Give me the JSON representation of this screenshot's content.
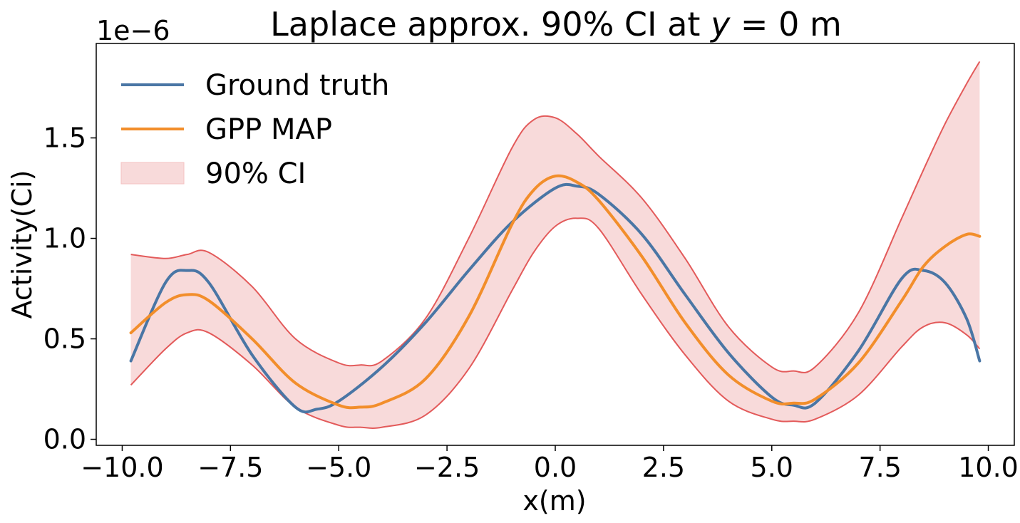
{
  "chart_data": {
    "type": "line",
    "title": "Laplace approx. 90% CI at y = 0 m",
    "title_parts": {
      "pre": "Laplace approx. 90% CI at ",
      "var": "y",
      "post": " = 0 m"
    },
    "xlabel": "x(m)",
    "ylabel": "Activity(Ci)",
    "y_offset_label": "1e−6",
    "xlim": [
      -10.6,
      10.6
    ],
    "ylim": [
      -0.03,
      1.97
    ],
    "x_ticks": [
      -10.0,
      -7.5,
      -5.0,
      -2.5,
      0.0,
      2.5,
      5.0,
      7.5,
      10.0
    ],
    "x_tick_labels": [
      "−10.0",
      "−7.5",
      "−5.0",
      "−2.5",
      "0.0",
      "2.5",
      "5.0",
      "7.5",
      "10.0"
    ],
    "y_ticks": [
      0.0,
      0.5,
      1.0,
      1.5
    ],
    "y_tick_labels": [
      "0.0",
      "0.5",
      "1.0",
      "1.5"
    ],
    "grid": false,
    "legend_position": "top-left",
    "series": [
      {
        "name": "Ground truth",
        "color": "#4a76a5",
        "x": [
          -9.8,
          -9.0,
          -8.5,
          -8.0,
          -7.0,
          -6.0,
          -5.5,
          -5.0,
          -4.0,
          -3.0,
          -2.0,
          -1.0,
          0.0,
          0.5,
          1.0,
          2.0,
          3.0,
          4.0,
          5.0,
          5.5,
          6.0,
          7.0,
          8.0,
          8.5,
          9.0,
          9.5,
          9.8
        ],
        "y": [
          0.39,
          0.78,
          0.84,
          0.78,
          0.42,
          0.16,
          0.15,
          0.19,
          0.36,
          0.58,
          0.84,
          1.08,
          1.25,
          1.26,
          1.22,
          1.02,
          0.72,
          0.43,
          0.21,
          0.17,
          0.18,
          0.44,
          0.8,
          0.84,
          0.78,
          0.6,
          0.39
        ]
      },
      {
        "name": "GPP MAP",
        "color": "#f28e2b",
        "x": [
          -9.8,
          -9.0,
          -8.5,
          -8.0,
          -7.0,
          -6.0,
          -5.0,
          -4.5,
          -4.0,
          -3.0,
          -2.0,
          -1.0,
          -0.5,
          0.0,
          0.5,
          1.0,
          2.0,
          3.0,
          4.0,
          5.0,
          5.5,
          6.0,
          7.0,
          8.0,
          8.5,
          9.0,
          9.5,
          9.8
        ],
        "y": [
          0.53,
          0.68,
          0.72,
          0.69,
          0.5,
          0.28,
          0.17,
          0.16,
          0.18,
          0.3,
          0.61,
          1.07,
          1.24,
          1.31,
          1.28,
          1.19,
          0.91,
          0.58,
          0.32,
          0.19,
          0.18,
          0.2,
          0.38,
          0.69,
          0.86,
          0.96,
          1.02,
          1.01
        ]
      }
    ],
    "bands": [
      {
        "name": "90% CI",
        "fill_color": "#f4c2c2",
        "edge_color": "#e35a5a",
        "x": [
          -9.8,
          -9.0,
          -8.5,
          -8.0,
          -7.0,
          -6.0,
          -5.0,
          -4.5,
          -4.0,
          -3.0,
          -2.0,
          -1.0,
          -0.5,
          0.0,
          0.5,
          1.0,
          2.0,
          3.0,
          4.0,
          5.0,
          5.5,
          6.0,
          7.0,
          8.0,
          8.5,
          9.0,
          9.5,
          9.8
        ],
        "upper": [
          0.92,
          0.9,
          0.92,
          0.93,
          0.76,
          0.5,
          0.38,
          0.37,
          0.39,
          0.6,
          1.0,
          1.45,
          1.59,
          1.6,
          1.52,
          1.41,
          1.2,
          0.9,
          0.56,
          0.36,
          0.34,
          0.36,
          0.63,
          1.1,
          1.34,
          1.57,
          1.77,
          1.88
        ],
        "lower": [
          0.27,
          0.45,
          0.53,
          0.53,
          0.37,
          0.16,
          0.07,
          0.06,
          0.06,
          0.12,
          0.35,
          0.74,
          0.93,
          1.06,
          1.1,
          1.05,
          0.72,
          0.42,
          0.19,
          0.1,
          0.09,
          0.1,
          0.22,
          0.46,
          0.56,
          0.58,
          0.52,
          0.45
        ]
      }
    ]
  }
}
